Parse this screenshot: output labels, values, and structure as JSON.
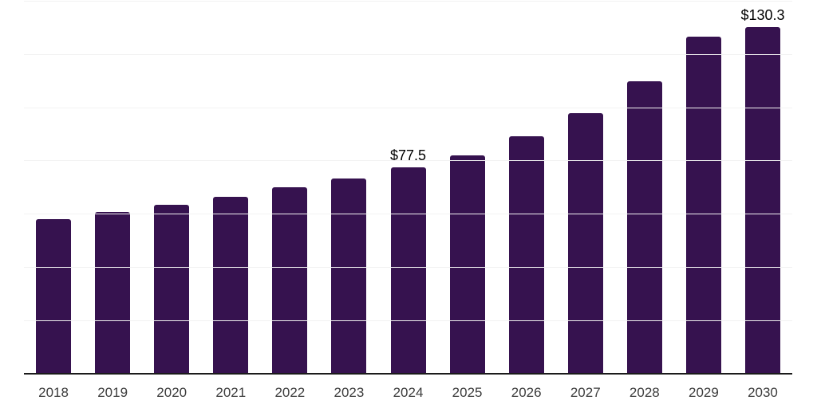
{
  "chart_data": {
    "type": "bar",
    "title": "",
    "categories": [
      "2018",
      "2019",
      "2020",
      "2021",
      "2022",
      "2023",
      "2024",
      "2025",
      "2026",
      "2027",
      "2028",
      "2029",
      "2030"
    ],
    "values": [
      58.2,
      60.8,
      63.5,
      66.5,
      70.2,
      73.5,
      77.5,
      82.2,
      89.1,
      97.8,
      109.8,
      126.6,
      130.3
    ],
    "data_labels": [
      {
        "category": "2024",
        "text": "$77.5"
      },
      {
        "category": "2030",
        "text": "$130.3"
      }
    ],
    "xlabel": "",
    "ylabel": "",
    "ylim": [
      0,
      140
    ],
    "gridline_step": 20,
    "grid": true,
    "legend": false,
    "y_axis_tick_labels_visible": false,
    "colors": {
      "bar": "#36124F",
      "background": "#ffffff",
      "gridline": "#f2f2f2",
      "axis_line": "#1b1b1b",
      "tick_label": "#3d3d3d",
      "value_label": "#000000"
    }
  }
}
